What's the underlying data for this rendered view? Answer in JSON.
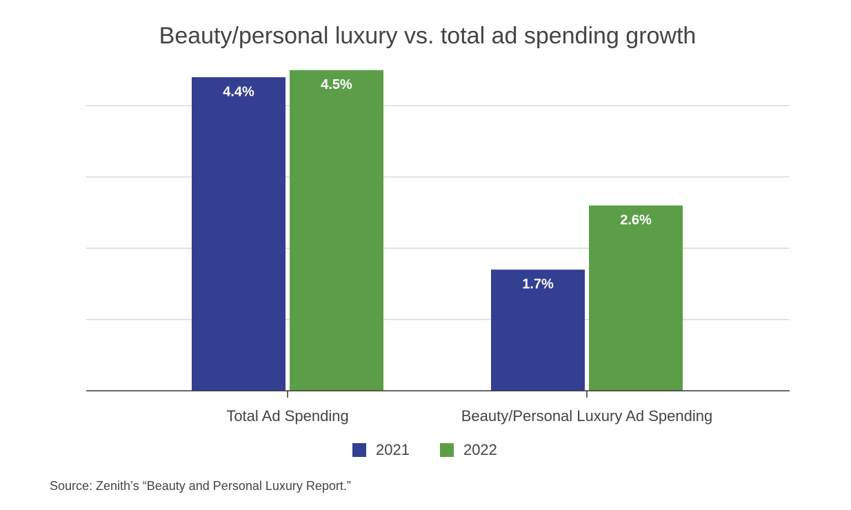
{
  "chart_data": {
    "type": "bar",
    "title": "Beauty/personal luxury vs. total ad spending growth",
    "categories": [
      "Total Ad Spending",
      "Beauty/Personal Luxury Ad Spending"
    ],
    "series": [
      {
        "name": "2021",
        "color": "#333f91",
        "values": [
          4.4,
          1.7
        ],
        "value_labels": [
          "4.4%",
          "1.7%"
        ]
      },
      {
        "name": "2022",
        "color": "#5c9e48",
        "values": [
          4.5,
          2.6
        ],
        "value_labels": [
          "4.5%",
          "2.6%"
        ]
      }
    ],
    "ylim": [
      0,
      5
    ],
    "yticks": [
      1,
      2,
      3,
      4
    ],
    "grid": true,
    "legend": "bottom",
    "source": "Source: Zenith’s “Beauty and Personal Luxury Report.”"
  }
}
